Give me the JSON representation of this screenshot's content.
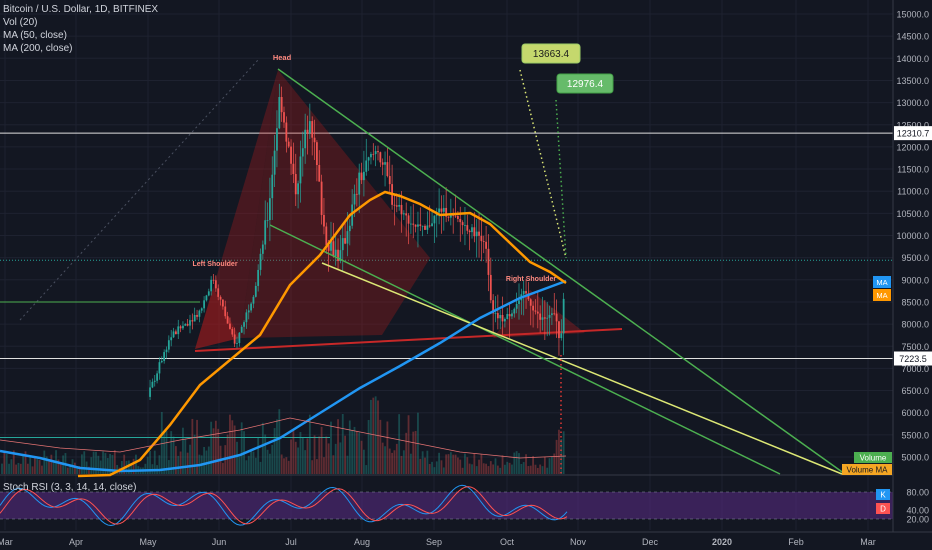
{
  "legend": {
    "symbol": "Bitcoin / U.S. Dollar, 1D, BITFINEX",
    "vol": "Vol (20)",
    "ma50": "MA (50, close)",
    "ma200": "MA (200, close)",
    "stoch": "Stoch RSI (3, 3, 14, 14, close)"
  },
  "price_axis": {
    "ticks": [
      "15000.0",
      "14500.0",
      "14000.0",
      "13500.0",
      "13000.0",
      "12500.0",
      "12000.0",
      "11500.0",
      "11000.0",
      "10500.0",
      "10000.0",
      "9500.0",
      "9000.0",
      "8500.0",
      "8000.0",
      "7500.0",
      "7000.0",
      "6500.0",
      "6000.0",
      "5500.0",
      "5000.0"
    ],
    "tick_values": [
      15000,
      14500,
      14000,
      13500,
      13000,
      12500,
      12000,
      11500,
      11000,
      10500,
      10000,
      9500,
      9000,
      8500,
      8000,
      7500,
      7000,
      6500,
      6000,
      5500,
      5000
    ],
    "resistance_label": "12310.7",
    "resistance_value": 12310.7,
    "support_label": "7223.5",
    "support_value": 7223.5,
    "ma_badge": "MA",
    "ma_badge_color": "#2196f3",
    "ma2_badge": "MA",
    "ma2_badge_color": "#ff9800",
    "volume_badge": "Volume",
    "volume_badge_color": "#4caf50",
    "volume_ma_badge": "Volume MA",
    "volume_ma_badge_color": "#f5a623"
  },
  "stoch_axis": {
    "ticks": [
      "80.00",
      "40.00",
      "20.00"
    ],
    "k_badge": "K",
    "d_badge": "D"
  },
  "time_axis": {
    "labels": [
      "Mar",
      "Apr",
      "May",
      "Jun",
      "Jul",
      "Aug",
      "Sep",
      "Oct",
      "Nov",
      "Dec",
      "2020",
      "Feb",
      "Mar"
    ]
  },
  "annotations": {
    "head": "Head",
    "left_shoulder": "Left Shoulder",
    "right_shoulder": "Right Shoulder",
    "target_high": "13663.4",
    "target_low": "12976.4"
  },
  "colors": {
    "background": "#131722",
    "up": "#26a69a",
    "down": "#ef5350",
    "ma50": "#ff9800",
    "ma200": "#2196f3",
    "trend_green": "#4caf50",
    "trend_yellow": "#dce775",
    "stoch_k": "#2196f3",
    "stoch_d": "#ff5252",
    "stoch_band": "#5b2c87"
  }
}
